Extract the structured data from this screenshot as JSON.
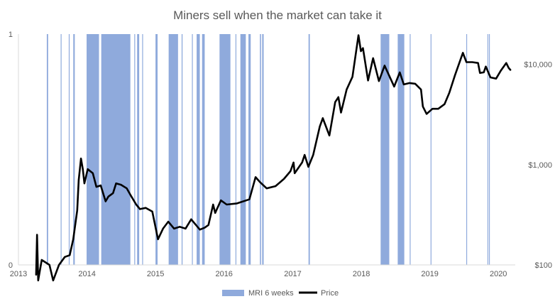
{
  "chart_data": {
    "type": "bar+line",
    "title": "Miners sell when the market can take it",
    "x_axis": {
      "type": "date",
      "range": [
        "2013-01-01",
        "2020-03-31"
      ],
      "ticks": [
        "2013",
        "2014",
        "2015",
        "2016",
        "2017",
        "2018",
        "2019",
        "2020"
      ]
    },
    "y_left": {
      "range": [
        0,
        1
      ],
      "ticks": [
        "0",
        "1"
      ]
    },
    "y_right": {
      "scale": "log",
      "range": [
        100,
        20000
      ],
      "ticks": [
        {
          "value": 100,
          "label": "$100"
        },
        {
          "value": 1000,
          "label": "$1,000"
        },
        {
          "value": 10000,
          "label": "$10,000"
        }
      ]
    },
    "grid": false,
    "legend": {
      "position": "bottom",
      "entries": [
        "MRI  6 weeks",
        "Price"
      ]
    },
    "colors": {
      "mri": "#8faadc",
      "price": "#000000",
      "axis": "#d9d9d9",
      "text": "#595959"
    },
    "series": [
      {
        "name": "MRI  6 weeks",
        "kind": "bar",
        "value": 1,
        "periods": [
          [
            "2013-06-01",
            "2013-06-08"
          ],
          [
            "2013-08-14",
            "2013-08-16"
          ],
          [
            "2013-09-26",
            "2013-09-30"
          ],
          [
            "2013-10-20",
            "2013-10-28"
          ],
          [
            "2013-12-30",
            "2014-03-06"
          ],
          [
            "2014-03-18",
            "2014-08-20"
          ],
          [
            "2014-09-10",
            "2014-09-14"
          ],
          [
            "2014-09-25",
            "2014-10-06"
          ],
          [
            "2014-10-22",
            "2014-10-26"
          ],
          [
            "2015-01-01",
            "2015-01-12"
          ],
          [
            "2015-03-12",
            "2015-05-01"
          ],
          [
            "2015-05-20",
            "2015-05-25"
          ],
          [
            "2015-07-14",
            "2015-07-18"
          ],
          [
            "2015-08-08",
            "2015-08-25"
          ],
          [
            "2015-09-06",
            "2015-09-20"
          ],
          [
            "2015-12-08",
            "2016-02-04"
          ],
          [
            "2016-03-02",
            "2016-03-06"
          ],
          [
            "2016-03-28",
            "2016-04-26"
          ],
          [
            "2016-05-10",
            "2016-05-22"
          ],
          [
            "2016-07-10",
            "2016-07-16"
          ],
          [
            "2016-07-22",
            "2016-07-30"
          ],
          [
            "2017-03-26",
            "2017-04-02"
          ],
          [
            "2018-04-14",
            "2018-05-30"
          ],
          [
            "2018-07-14",
            "2018-08-18"
          ],
          [
            "2018-09-16",
            "2018-09-19"
          ],
          [
            "2019-01-05",
            "2019-01-08"
          ],
          [
            "2019-07-14",
            "2019-07-17"
          ],
          [
            "2019-11-04",
            "2019-11-07"
          ],
          [
            "2019-11-12",
            "2019-11-16"
          ]
        ]
      },
      {
        "name": "Price",
        "kind": "line",
        "axis": "right",
        "points": [
          [
            "2013-04-05",
            80
          ],
          [
            "2013-04-10",
            200
          ],
          [
            "2013-04-16",
            70
          ],
          [
            "2013-05-05",
            112
          ],
          [
            "2013-06-15",
            100
          ],
          [
            "2013-07-05",
            70
          ],
          [
            "2013-08-05",
            100
          ],
          [
            "2013-09-05",
            120
          ],
          [
            "2013-10-01",
            125
          ],
          [
            "2013-10-20",
            180
          ],
          [
            "2013-11-10",
            350
          ],
          [
            "2013-11-18",
            700
          ],
          [
            "2013-11-30",
            1150
          ],
          [
            "2013-12-10",
            900
          ],
          [
            "2013-12-18",
            650
          ],
          [
            "2014-01-05",
            900
          ],
          [
            "2014-02-01",
            820
          ],
          [
            "2014-02-20",
            600
          ],
          [
            "2014-03-15",
            620
          ],
          [
            "2014-04-10",
            430
          ],
          [
            "2014-04-25",
            480
          ],
          [
            "2014-05-20",
            520
          ],
          [
            "2014-06-05",
            650
          ],
          [
            "2014-07-01",
            630
          ],
          [
            "2014-08-01",
            580
          ],
          [
            "2014-08-20",
            500
          ],
          [
            "2014-09-20",
            400
          ],
          [
            "2014-10-10",
            360
          ],
          [
            "2014-11-10",
            370
          ],
          [
            "2014-12-15",
            340
          ],
          [
            "2015-01-14",
            180
          ],
          [
            "2015-02-10",
            230
          ],
          [
            "2015-03-10",
            270
          ],
          [
            "2015-04-10",
            230
          ],
          [
            "2015-05-10",
            240
          ],
          [
            "2015-06-10",
            230
          ],
          [
            "2015-07-10",
            285
          ],
          [
            "2015-08-25",
            225
          ],
          [
            "2015-09-20",
            235
          ],
          [
            "2015-10-10",
            250
          ],
          [
            "2015-11-04",
            400
          ],
          [
            "2015-11-15",
            330
          ],
          [
            "2015-12-15",
            440
          ],
          [
            "2016-01-15",
            400
          ],
          [
            "2016-03-10",
            410
          ],
          [
            "2016-05-15",
            450
          ],
          [
            "2016-06-17",
            750
          ],
          [
            "2016-07-10",
            670
          ],
          [
            "2016-08-15",
            580
          ],
          [
            "2016-10-01",
            610
          ],
          [
            "2016-11-15",
            720
          ],
          [
            "2016-12-20",
            860
          ],
          [
            "2017-01-05",
            1050
          ],
          [
            "2017-01-11",
            820
          ],
          [
            "2017-02-20",
            1050
          ],
          [
            "2017-03-05",
            1250
          ],
          [
            "2017-03-25",
            950
          ],
          [
            "2017-04-20",
            1250
          ],
          [
            "2017-05-25",
            2400
          ],
          [
            "2017-06-10",
            2900
          ],
          [
            "2017-07-15",
            1950
          ],
          [
            "2017-08-15",
            4200
          ],
          [
            "2017-09-01",
            4700
          ],
          [
            "2017-09-15",
            3300
          ],
          [
            "2017-10-15",
            5600
          ],
          [
            "2017-11-15",
            7500
          ],
          [
            "2017-12-17",
            19500
          ],
          [
            "2017-12-30",
            13500
          ],
          [
            "2018-01-10",
            14500
          ],
          [
            "2018-02-06",
            6900
          ],
          [
            "2018-03-05",
            11500
          ],
          [
            "2018-04-05",
            6800
          ],
          [
            "2018-05-05",
            9700
          ],
          [
            "2018-06-25",
            6000
          ],
          [
            "2018-07-25",
            8300
          ],
          [
            "2018-08-15",
            6300
          ],
          [
            "2018-09-15",
            6500
          ],
          [
            "2018-10-15",
            6400
          ],
          [
            "2018-11-15",
            5600
          ],
          [
            "2018-11-25",
            3800
          ],
          [
            "2018-12-15",
            3200
          ],
          [
            "2019-01-15",
            3600
          ],
          [
            "2019-02-15",
            3600
          ],
          [
            "2019-03-20",
            4000
          ],
          [
            "2019-04-15",
            5200
          ],
          [
            "2019-05-15",
            7800
          ],
          [
            "2019-06-26",
            13000
          ],
          [
            "2019-07-15",
            10500
          ],
          [
            "2019-08-15",
            10500
          ],
          [
            "2019-09-15",
            10300
          ],
          [
            "2019-09-25",
            8200
          ],
          [
            "2019-10-15",
            8300
          ],
          [
            "2019-10-26",
            9500
          ],
          [
            "2019-11-20",
            7400
          ],
          [
            "2019-12-20",
            7200
          ],
          [
            "2020-01-15",
            8700
          ],
          [
            "2020-02-12",
            10300
          ],
          [
            "2020-02-25",
            9200
          ],
          [
            "2020-03-05",
            8800
          ]
        ]
      }
    ]
  }
}
